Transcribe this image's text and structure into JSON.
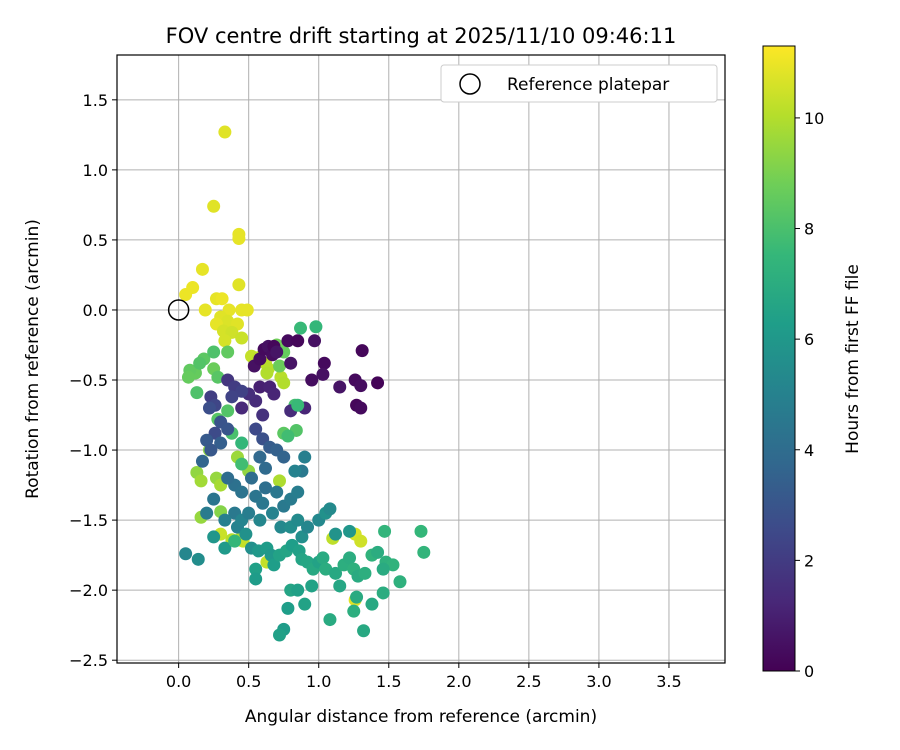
{
  "chart_data": {
    "type": "scatter",
    "title": "FOV centre drift starting at 2025/11/10 09:46:11",
    "xlabel": "Angular distance from reference (arcmin)",
    "ylabel": "Rotation from reference (arcmin)",
    "xlim": [
      -0.44,
      3.9
    ],
    "ylim": [
      -2.52,
      1.82
    ],
    "xticks": [
      "0.0",
      "0.5",
      "1.0",
      "1.5",
      "2.0",
      "2.5",
      "3.0",
      "3.5"
    ],
    "xtick_values": [
      0,
      0.5,
      1.0,
      1.5,
      2.0,
      2.5,
      3.0,
      3.5
    ],
    "yticks": [
      "1.5",
      "1.0",
      "0.5",
      "0.0",
      "−0.5",
      "−1.0",
      "−1.5",
      "−2.0",
      "−2.5"
    ],
    "ytick_values": [
      1.5,
      1.0,
      0.5,
      0.0,
      -0.5,
      -1.0,
      -1.5,
      -2.0,
      -2.5
    ],
    "grid": true,
    "legend": {
      "placement": "top-right",
      "label": "Reference platepar"
    },
    "reference_point": {
      "x": 0.0,
      "y": 0.0
    },
    "colorbar": {
      "label": "Hours from first FF file",
      "range": [
        0,
        11.3
      ],
      "ticks": [
        "0",
        "2",
        "4",
        "6",
        "8",
        "10"
      ],
      "tick_values": [
        0,
        2,
        4,
        6,
        8,
        10
      ],
      "colormap": [
        "#440154",
        "#482878",
        "#3e4989",
        "#31688e",
        "#26828e",
        "#1f9e89",
        "#35b779",
        "#6ece58",
        "#b5de2b",
        "#fde725"
      ]
    },
    "series_columns": [
      "x",
      "y",
      "hours"
    ],
    "points": [
      [
        0.33,
        1.27,
        10.8
      ],
      [
        0.25,
        0.74,
        10.8
      ],
      [
        0.43,
        0.54,
        10.9
      ],
      [
        0.43,
        0.51,
        10.9
      ],
      [
        0.43,
        0.18,
        10.8
      ],
      [
        0.17,
        0.29,
        10.9
      ],
      [
        0.1,
        0.16,
        11.0
      ],
      [
        0.05,
        0.11,
        11.0
      ],
      [
        0.27,
        0.08,
        10.9
      ],
      [
        0.31,
        0.08,
        11.0
      ],
      [
        0.19,
        0.0,
        10.9
      ],
      [
        0.36,
        0.0,
        10.9
      ],
      [
        0.45,
        0.0,
        10.9
      ],
      [
        0.49,
        0.0,
        10.9
      ],
      [
        0.3,
        -0.05,
        10.8
      ],
      [
        0.35,
        -0.08,
        10.7
      ],
      [
        0.27,
        -0.1,
        10.9
      ],
      [
        0.42,
        -0.1,
        10.8
      ],
      [
        0.32,
        -0.15,
        10.6
      ],
      [
        0.38,
        -0.16,
        10.5
      ],
      [
        0.45,
        -0.2,
        10.4
      ],
      [
        0.33,
        -0.22,
        10.6
      ],
      [
        0.52,
        -0.33,
        10.3
      ],
      [
        0.57,
        -0.34,
        10.2
      ],
      [
        0.62,
        -0.38,
        10.2
      ],
      [
        0.64,
        -0.42,
        10.1
      ],
      [
        0.63,
        -0.45,
        10.0
      ],
      [
        0.73,
        -0.48,
        10.1
      ],
      [
        0.75,
        -0.52,
        10.0
      ],
      [
        0.12,
        -0.45,
        8.6
      ],
      [
        0.08,
        -0.43,
        8.5
      ],
      [
        0.07,
        -0.48,
        8.6
      ],
      [
        0.25,
        -0.42,
        8.7
      ],
      [
        0.28,
        -0.48,
        8.3
      ],
      [
        0.18,
        -0.35,
        8.4
      ],
      [
        0.15,
        -0.38,
        8.2
      ],
      [
        0.35,
        -0.3,
        8.5
      ],
      [
        0.25,
        -0.3,
        8.1
      ],
      [
        0.7,
        -0.25,
        8.8
      ],
      [
        0.75,
        -0.3,
        8.6
      ],
      [
        0.72,
        -0.4,
        8.7
      ],
      [
        0.13,
        -0.59,
        8.1
      ],
      [
        0.35,
        -0.72,
        8.2
      ],
      [
        0.28,
        -0.78,
        8.3
      ],
      [
        0.38,
        -0.88,
        8.0
      ],
      [
        0.75,
        -0.88,
        8.4
      ],
      [
        0.83,
        -0.68,
        7.9
      ],
      [
        0.84,
        -0.86,
        8.2
      ],
      [
        0.13,
        -1.16,
        9.4
      ],
      [
        0.16,
        -1.22,
        9.7
      ],
      [
        0.27,
        -1.2,
        9.5
      ],
      [
        0.3,
        -1.25,
        9.8
      ],
      [
        0.22,
        -1.0,
        9.3
      ],
      [
        0.42,
        -1.05,
        9.6
      ],
      [
        0.5,
        -1.15,
        9.4
      ],
      [
        0.72,
        -1.22,
        9.9
      ],
      [
        0.3,
        -1.44,
        9.2
      ],
      [
        0.16,
        -1.48,
        9.5
      ],
      [
        0.3,
        -1.6,
        10.4
      ],
      [
        0.38,
        -1.64,
        10.1
      ],
      [
        0.43,
        -1.64,
        10.0
      ],
      [
        0.46,
        -1.65,
        10.3
      ],
      [
        0.63,
        -1.8,
        10.3
      ],
      [
        1.1,
        -1.63,
        10.2
      ],
      [
        1.26,
        -1.6,
        10.6
      ],
      [
        1.3,
        -1.65,
        10.5
      ],
      [
        1.26,
        -2.07,
        10.8
      ],
      [
        0.54,
        -0.4,
        0.5
      ],
      [
        0.58,
        -0.35,
        0.4
      ],
      [
        0.61,
        -0.28,
        0.3
      ],
      [
        0.64,
        -0.26,
        0.5
      ],
      [
        0.67,
        -0.32,
        0.4
      ],
      [
        0.68,
        -0.26,
        0.2
      ],
      [
        0.7,
        -0.3,
        0.6
      ],
      [
        0.78,
        -0.22,
        0.3
      ],
      [
        0.85,
        -0.22,
        0.2
      ],
      [
        0.97,
        -0.22,
        0.5
      ],
      [
        0.8,
        -0.38,
        0.6
      ],
      [
        1.04,
        -0.38,
        0.3
      ],
      [
        0.95,
        -0.5,
        0.4
      ],
      [
        1.03,
        -0.46,
        0.5
      ],
      [
        1.15,
        -0.55,
        0.6
      ],
      [
        1.26,
        -0.5,
        0.3
      ],
      [
        1.3,
        -0.54,
        0.4
      ],
      [
        1.31,
        -0.29,
        0.2
      ],
      [
        1.42,
        -0.52,
        0.1
      ],
      [
        1.27,
        -0.68,
        0.2
      ],
      [
        1.3,
        -0.7,
        0.3
      ],
      [
        0.58,
        -0.55,
        1.0
      ],
      [
        0.65,
        -0.55,
        1.1
      ],
      [
        0.68,
        -0.6,
        1.2
      ],
      [
        0.55,
        -0.65,
        1.4
      ],
      [
        0.6,
        -0.75,
        1.6
      ],
      [
        0.5,
        -0.6,
        1.5
      ],
      [
        0.45,
        -0.7,
        1.3
      ],
      [
        0.9,
        -0.7,
        1.2
      ],
      [
        0.8,
        -0.72,
        1.4
      ],
      [
        0.35,
        -0.5,
        1.8
      ],
      [
        0.4,
        -0.55,
        2.0
      ],
      [
        0.45,
        -0.58,
        2.2
      ],
      [
        0.38,
        -0.62,
        2.3
      ],
      [
        0.23,
        -0.62,
        2.1
      ],
      [
        0.26,
        -0.68,
        2.4
      ],
      [
        0.22,
        -0.7,
        2.7
      ],
      [
        0.3,
        -0.8,
        2.9
      ],
      [
        0.35,
        -0.85,
        3.0
      ],
      [
        0.26,
        -0.88,
        2.6
      ],
      [
        0.2,
        -0.93,
        3.2
      ],
      [
        0.3,
        -0.95,
        3.4
      ],
      [
        0.23,
        -1.0,
        3.1
      ],
      [
        0.55,
        -0.85,
        2.5
      ],
      [
        0.6,
        -0.92,
        2.8
      ],
      [
        0.65,
        -0.98,
        3.3
      ],
      [
        0.7,
        -1.0,
        3.5
      ],
      [
        0.75,
        -1.05,
        3.6
      ],
      [
        0.58,
        -1.05,
        3.8
      ],
      [
        0.62,
        -1.13,
        3.9
      ],
      [
        0.52,
        -1.2,
        4.0
      ],
      [
        0.4,
        -1.25,
        4.2
      ],
      [
        0.45,
        -1.3,
        4.3
      ],
      [
        0.55,
        -1.33,
        4.4
      ],
      [
        0.62,
        -1.27,
        4.1
      ],
      [
        0.7,
        -1.3,
        4.5
      ],
      [
        0.75,
        -1.4,
        4.6
      ],
      [
        0.8,
        -1.35,
        4.7
      ],
      [
        0.85,
        -1.3,
        4.8
      ],
      [
        0.88,
        -1.15,
        4.6
      ],
      [
        0.9,
        -1.05,
        4.9
      ],
      [
        0.83,
        -1.15,
        5.0
      ],
      [
        0.17,
        -1.08,
        3.7
      ],
      [
        0.35,
        -1.2,
        4.0
      ],
      [
        0.25,
        -1.35,
        4.4
      ],
      [
        0.4,
        -1.45,
        4.6
      ],
      [
        0.33,
        -1.5,
        4.9
      ],
      [
        0.2,
        -1.45,
        4.7
      ],
      [
        0.42,
        -1.55,
        5.0
      ],
      [
        0.45,
        -1.5,
        5.1
      ],
      [
        0.5,
        -1.45,
        4.8
      ],
      [
        0.58,
        -1.5,
        5.2
      ],
      [
        0.6,
        -1.38,
        4.5
      ],
      [
        0.67,
        -1.45,
        5.0
      ],
      [
        0.73,
        -1.55,
        5.3
      ],
      [
        0.8,
        -1.55,
        5.5
      ],
      [
        0.85,
        -1.5,
        5.4
      ],
      [
        0.88,
        -1.62,
        5.6
      ],
      [
        0.92,
        -1.55,
        5.2
      ],
      [
        1.0,
        -1.5,
        5.3
      ],
      [
        1.05,
        -1.45,
        5.7
      ],
      [
        1.08,
        -1.42,
        5.4
      ],
      [
        1.22,
        -1.58,
        5.9
      ],
      [
        1.12,
        -1.6,
        5.8
      ],
      [
        0.05,
        -1.74,
        5.2
      ],
      [
        0.14,
        -1.78,
        5.5
      ],
      [
        0.25,
        -1.62,
        5.9
      ],
      [
        0.33,
        -1.7,
        6.1
      ],
      [
        0.48,
        -1.6,
        5.7
      ],
      [
        0.52,
        -1.7,
        5.6
      ],
      [
        0.57,
        -1.72,
        6.0
      ],
      [
        0.63,
        -1.7,
        6.2
      ],
      [
        0.66,
        -1.75,
        6.0
      ],
      [
        0.68,
        -1.82,
        6.3
      ],
      [
        0.55,
        -1.85,
        6.4
      ],
      [
        0.55,
        -1.92,
        6.2
      ],
      [
        0.72,
        -1.75,
        6.5
      ],
      [
        0.77,
        -1.72,
        6.6
      ],
      [
        0.81,
        -1.68,
        6.3
      ],
      [
        0.86,
        -1.72,
        6.4
      ],
      [
        0.88,
        -1.78,
        6.6
      ],
      [
        0.92,
        -1.8,
        6.7
      ],
      [
        0.96,
        -1.85,
        6.8
      ],
      [
        1.0,
        -1.8,
        6.5
      ],
      [
        1.03,
        -1.77,
        6.9
      ],
      [
        1.05,
        -1.85,
        7.0
      ],
      [
        1.12,
        -1.88,
        6.8
      ],
      [
        1.18,
        -1.82,
        7.1
      ],
      [
        1.22,
        -1.77,
        7.0
      ],
      [
        1.25,
        -1.85,
        7.2
      ],
      [
        1.28,
        -1.9,
        6.9
      ],
      [
        1.33,
        -1.88,
        7.1
      ],
      [
        1.38,
        -1.75,
        7.3
      ],
      [
        1.42,
        -1.73,
        7.0
      ],
      [
        1.48,
        -1.8,
        7.2
      ],
      [
        1.53,
        -1.82,
        7.3
      ],
      [
        1.46,
        -1.85,
        6.9
      ],
      [
        1.47,
        -1.58,
        7.4
      ],
      [
        1.73,
        -1.58,
        7.5
      ],
      [
        1.75,
        -1.73,
        7.4
      ],
      [
        1.58,
        -1.94,
        7.2
      ],
      [
        1.46,
        -2.02,
        7.0
      ],
      [
        1.38,
        -2.1,
        6.8
      ],
      [
        1.27,
        -2.05,
        6.9
      ],
      [
        1.25,
        -2.15,
        7.1
      ],
      [
        1.32,
        -2.29,
        6.8
      ],
      [
        1.08,
        -2.21,
        6.9
      ],
      [
        1.15,
        -1.97,
        6.7
      ],
      [
        0.95,
        -1.97,
        6.5
      ],
      [
        0.8,
        -2.0,
        6.6
      ],
      [
        0.85,
        -2.0,
        6.4
      ],
      [
        0.78,
        -2.13,
        6.3
      ],
      [
        0.9,
        -2.1,
        6.5
      ],
      [
        0.75,
        -2.28,
        6.2
      ],
      [
        0.72,
        -2.32,
        6.4
      ],
      [
        0.98,
        -0.12,
        7.5
      ],
      [
        0.87,
        -0.13,
        7.6
      ],
      [
        0.85,
        -0.68,
        7.6
      ],
      [
        0.78,
        -0.9,
        7.8
      ],
      [
        0.45,
        -0.95,
        7.5
      ],
      [
        0.4,
        -1.65,
        7.5
      ],
      [
        0.45,
        -1.1,
        7.8
      ]
    ]
  }
}
